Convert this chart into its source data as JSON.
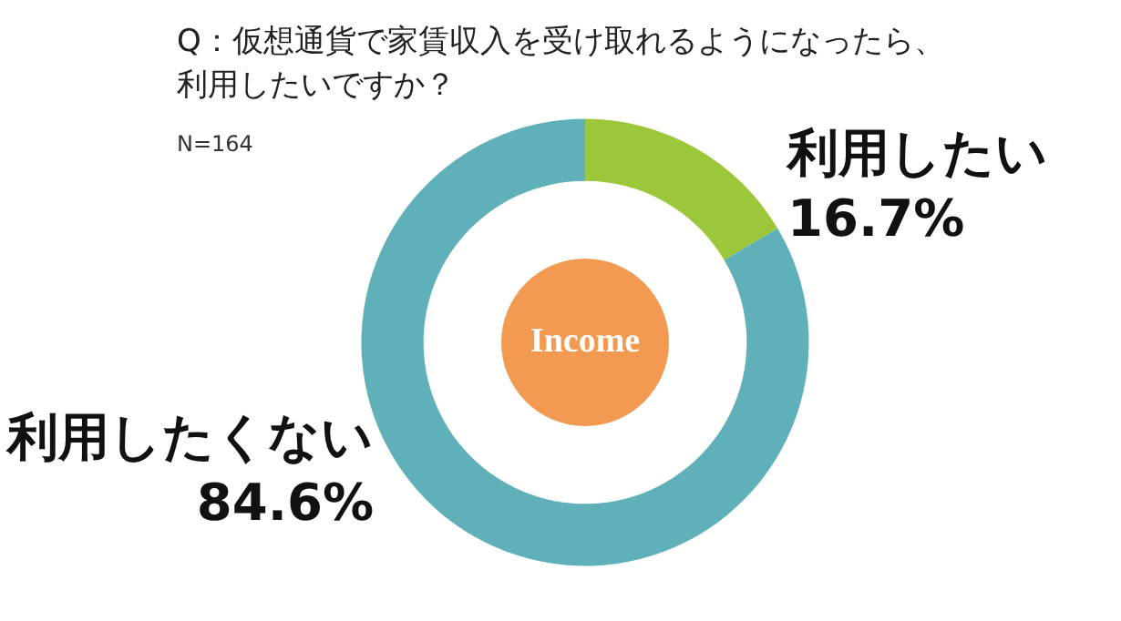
{
  "chart_data": {
    "type": "donut",
    "title": "Q：仮想通貨で家賃収入を受け取れるようになったら、利用したいですか？",
    "subtitle": "N=164",
    "categories": [
      "利用したい",
      "利用したくない"
    ],
    "values": [
      16.7,
      84.6
    ],
    "value_labels": [
      "16.7%",
      "84.6%"
    ],
    "colors": [
      "#9dc73b",
      "#5fb0b9"
    ],
    "annotations": [
      "Income"
    ]
  }
}
